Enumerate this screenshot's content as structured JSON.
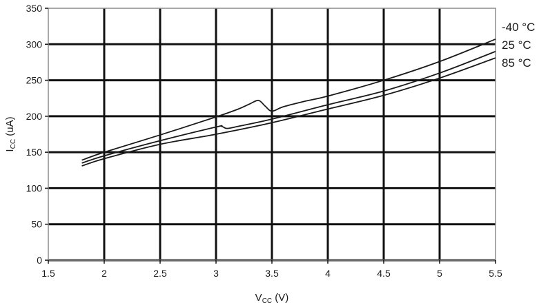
{
  "chart_data": {
    "type": "line",
    "title": "",
    "xlabel": {
      "main": "V",
      "sub": "CC",
      "unit": " (V)"
    },
    "ylabel": {
      "main": "I",
      "sub": "CC",
      "unit": " (uA)"
    },
    "xlim": [
      1.5,
      5.5
    ],
    "ylim": [
      0,
      350
    ],
    "x_ticks": [
      1.5,
      2,
      2.5,
      3,
      3.5,
      4,
      4.5,
      5,
      5.5
    ],
    "y_ticks": [
      0,
      50,
      100,
      150,
      200,
      250,
      300,
      350
    ],
    "grid": true,
    "legend_placement": "right, at line ends",
    "series": [
      {
        "name": "-40 °C",
        "x": [
          1.8,
          2.0,
          2.5,
          3.0,
          3.2,
          3.3,
          3.38,
          3.44,
          3.5,
          3.6,
          3.8,
          4.0,
          4.5,
          5.0,
          5.5
        ],
        "y": [
          139,
          150,
          174,
          199,
          210,
          217,
          222,
          214,
          207,
          213,
          221,
          228,
          250,
          276,
          307
        ]
      },
      {
        "name": "25 °C",
        "x": [
          1.8,
          2.0,
          2.5,
          3.0,
          3.05,
          3.1,
          3.2,
          3.5,
          4.0,
          4.5,
          5.0,
          5.5
        ],
        "y": [
          135,
          145,
          166,
          185,
          186,
          183,
          186,
          196,
          216,
          235,
          260,
          290
        ]
      },
      {
        "name": "85 °C",
        "x": [
          1.8,
          2.0,
          2.5,
          3.0,
          3.5,
          4.0,
          4.5,
          5.0,
          5.5
        ],
        "y": [
          131,
          141,
          161,
          175,
          191,
          210,
          229,
          253,
          281
        ]
      }
    ]
  }
}
